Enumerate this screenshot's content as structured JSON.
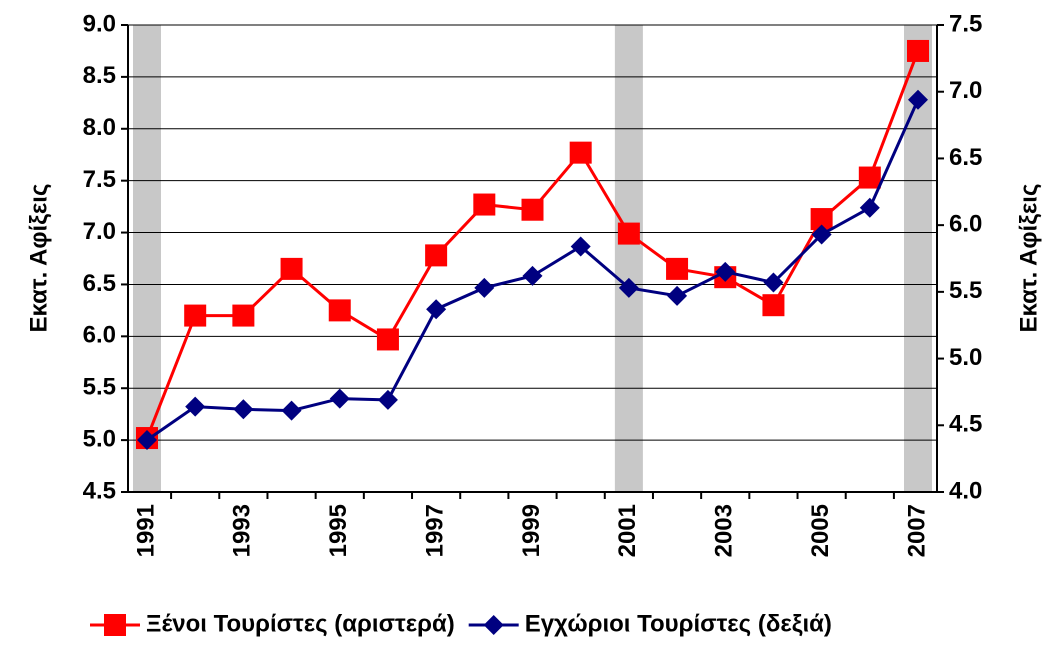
{
  "chart_data": {
    "type": "line",
    "categories": [
      "1991",
      null,
      "1993",
      null,
      "1995",
      null,
      "1997",
      null,
      "1999",
      null,
      "2001",
      null,
      "2003",
      null,
      "2005",
      null,
      "2007"
    ],
    "series": [
      {
        "name": "Ξένοι Τουρίστες (αριστερά)",
        "color": "#ff0000",
        "marker": "square",
        "values": [
          5.02,
          6.2,
          6.2,
          6.65,
          6.25,
          5.97,
          6.78,
          7.27,
          7.22,
          7.77,
          6.99,
          6.65,
          6.57,
          6.3,
          7.13,
          7.53,
          8.75
        ]
      },
      {
        "name": "Εγχώριοι Τουρίστες (δεξιά)",
        "color": "#000080",
        "marker": "diamond",
        "axis": "y2",
        "values": [
          4.39,
          4.64,
          4.62,
          4.61,
          4.7,
          4.69,
          5.37,
          5.53,
          5.62,
          5.84,
          5.53,
          5.47,
          5.65,
          5.57,
          5.93,
          6.13,
          6.94
        ]
      }
    ],
    "ylabel": "Εκατ. Αφίξεις",
    "y2label": "Εκατ. Αφίξεις",
    "ylim": [
      4.5,
      9
    ],
    "yticks": [
      {
        "value": 4.5,
        "label": "4.5"
      },
      {
        "value": 5,
        "label": "5.0"
      },
      5.5,
      {
        "value": 6,
        "label": "6.0"
      },
      6.5,
      {
        "value": 7,
        "label": "7.0"
      },
      7.5,
      {
        "value": 8,
        "label": "8.0"
      },
      8.5,
      {
        "value": 9,
        "label": "9.0"
      }
    ],
    "y2lim": [
      4,
      7.5
    ],
    "y2ticks": [
      {
        "value": 4,
        "label": "4.0"
      },
      4.5,
      {
        "value": 5,
        "label": "5.0"
      },
      5.5,
      {
        "value": 6,
        "label": "6.0"
      },
      6.5,
      {
        "value": 7,
        "label": "7.0"
      },
      7.5
    ],
    "grid": true,
    "legend": "bottom",
    "shaded_categories": [
      0,
      10,
      16
    ]
  }
}
